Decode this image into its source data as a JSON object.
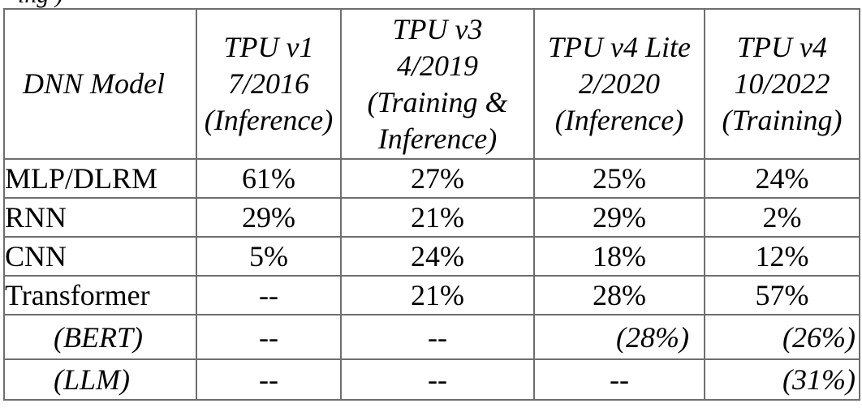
{
  "header_fragment": "ing                                 )",
  "table": {
    "headers": [
      {
        "lines": [
          "DNN Model"
        ]
      },
      {
        "lines": [
          "TPU v1",
          "7/2016",
          "(Inference)"
        ]
      },
      {
        "lines": [
          "TPU v3",
          "4/2019",
          "(Training &",
          "Inference)"
        ]
      },
      {
        "lines": [
          "TPU v4 Lite",
          "2/2020",
          "(Inference)"
        ]
      },
      {
        "lines": [
          "TPU v4",
          "10/2022",
          "(Training)"
        ]
      }
    ],
    "rows": [
      {
        "model": "MLP/DLRM",
        "values": [
          "61%",
          "27%",
          "25%",
          "24%"
        ]
      },
      {
        "model": "RNN",
        "values": [
          "29%",
          "21%",
          "29%",
          "2%"
        ]
      },
      {
        "model": "CNN",
        "values": [
          "5%",
          "24%",
          "18%",
          "12%"
        ]
      },
      {
        "model": "Transformer",
        "values": [
          "--",
          "21%",
          "28%",
          "57%"
        ]
      },
      {
        "model": "(BERT)",
        "values": [
          "--",
          "--",
          "(28%)",
          "(26%)"
        ]
      },
      {
        "model": "(LLM)",
        "values": [
          "--",
          "--",
          "--",
          "(31%)"
        ]
      }
    ]
  }
}
